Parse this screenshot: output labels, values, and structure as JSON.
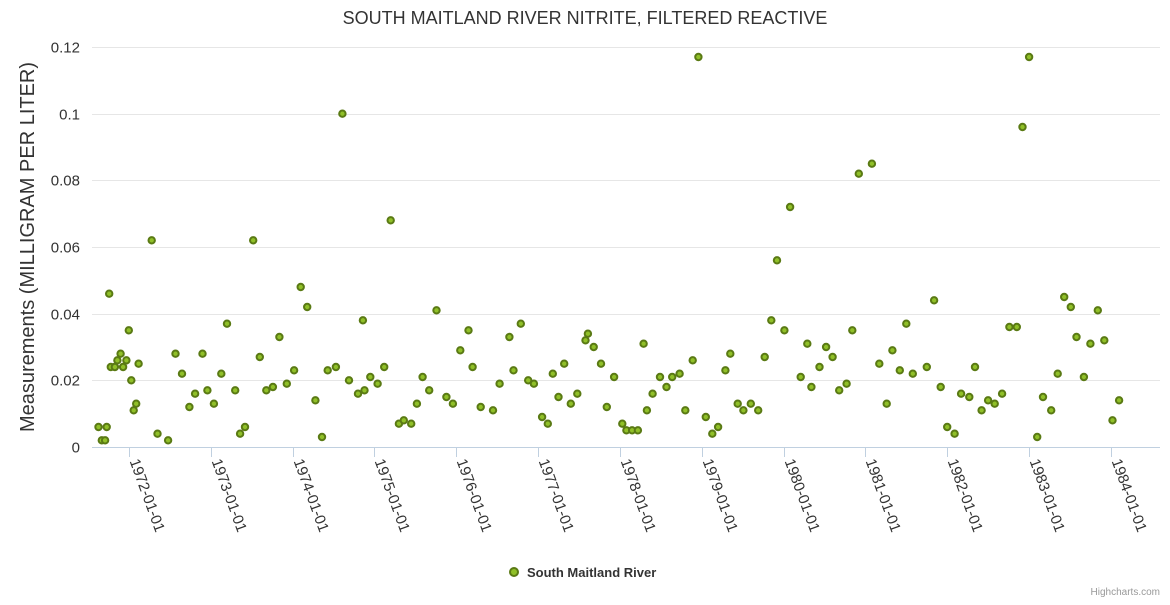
{
  "chart_data": {
    "type": "scatter",
    "title": "SOUTH MAITLAND RIVER NITRITE, FILTERED REACTIVE",
    "ylabel": "Measurements (MILLIGRAM PER LITER)",
    "xlabel": "",
    "ylim": [
      0,
      0.12
    ],
    "y_ticks": [
      0,
      0.02,
      0.04,
      0.06,
      0.08,
      0.1,
      0.12
    ],
    "y_tick_labels": [
      "0",
      "0.02",
      "0.04",
      "0.06",
      "0.08",
      "0.1",
      "0.12"
    ],
    "xlim": [
      1971.55,
      1984.6
    ],
    "x_ticks": [
      1972,
      1973,
      1974,
      1975,
      1976,
      1977,
      1978,
      1979,
      1980,
      1981,
      1982,
      1983,
      1984
    ],
    "x_tick_labels": [
      "1972-01-01",
      "1973-01-01",
      "1974-01-01",
      "1975-01-01",
      "1976-01-01",
      "1977-01-01",
      "1978-01-01",
      "1979-01-01",
      "1980-01-01",
      "1981-01-01",
      "1982-01-01",
      "1983-01-01",
      "1984-01-01"
    ],
    "grid": true,
    "legend_position": "bottom-center",
    "series": [
      {
        "name": "South Maitland River",
        "color": "#90c028",
        "outline_color": "#5a7a14",
        "points": [
          [
            1971.63,
            0.006
          ],
          [
            1971.67,
            0.002
          ],
          [
            1971.71,
            0.002
          ],
          [
            1971.73,
            0.006
          ],
          [
            1971.76,
            0.046
          ],
          [
            1971.78,
            0.024
          ],
          [
            1971.83,
            0.024
          ],
          [
            1971.86,
            0.026
          ],
          [
            1971.9,
            0.028
          ],
          [
            1971.93,
            0.024
          ],
          [
            1971.97,
            0.026
          ],
          [
            1972.0,
            0.035
          ],
          [
            1972.03,
            0.02
          ],
          [
            1972.06,
            0.011
          ],
          [
            1972.09,
            0.013
          ],
          [
            1972.12,
            0.025
          ],
          [
            1972.28,
            0.062
          ],
          [
            1972.35,
            0.004
          ],
          [
            1972.48,
            0.002
          ],
          [
            1972.57,
            0.028
          ],
          [
            1972.65,
            0.022
          ],
          [
            1972.74,
            0.012
          ],
          [
            1972.81,
            0.016
          ],
          [
            1972.9,
            0.028
          ],
          [
            1972.96,
            0.017
          ],
          [
            1973.04,
            0.013
          ],
          [
            1973.13,
            0.022
          ],
          [
            1973.2,
            0.037
          ],
          [
            1973.3,
            0.017
          ],
          [
            1973.36,
            0.004
          ],
          [
            1973.42,
            0.006
          ],
          [
            1973.52,
            0.062
          ],
          [
            1973.6,
            0.027
          ],
          [
            1973.68,
            0.017
          ],
          [
            1973.76,
            0.018
          ],
          [
            1973.84,
            0.033
          ],
          [
            1973.93,
            0.019
          ],
          [
            1974.02,
            0.023
          ],
          [
            1974.1,
            0.048
          ],
          [
            1974.18,
            0.042
          ],
          [
            1974.28,
            0.014
          ],
          [
            1974.36,
            0.003
          ],
          [
            1974.43,
            0.023
          ],
          [
            1974.53,
            0.024
          ],
          [
            1974.61,
            0.1
          ],
          [
            1974.69,
            0.02
          ],
          [
            1974.8,
            0.016
          ],
          [
            1974.86,
            0.038
          ],
          [
            1974.88,
            0.017
          ],
          [
            1974.95,
            0.021
          ],
          [
            1975.04,
            0.019
          ],
          [
            1975.12,
            0.024
          ],
          [
            1975.2,
            0.068
          ],
          [
            1975.3,
            0.007
          ],
          [
            1975.36,
            0.008
          ],
          [
            1975.45,
            0.007
          ],
          [
            1975.52,
            0.013
          ],
          [
            1975.59,
            0.021
          ],
          [
            1975.67,
            0.017
          ],
          [
            1975.76,
            0.041
          ],
          [
            1975.88,
            0.015
          ],
          [
            1975.96,
            0.013
          ],
          [
            1976.05,
            0.029
          ],
          [
            1976.15,
            0.035
          ],
          [
            1976.2,
            0.024
          ],
          [
            1976.3,
            0.012
          ],
          [
            1976.45,
            0.011
          ],
          [
            1976.53,
            0.019
          ],
          [
            1976.65,
            0.033
          ],
          [
            1976.7,
            0.023
          ],
          [
            1976.79,
            0.037
          ],
          [
            1976.88,
            0.02
          ],
          [
            1976.95,
            0.019
          ],
          [
            1977.05,
            0.009
          ],
          [
            1977.12,
            0.007
          ],
          [
            1977.18,
            0.022
          ],
          [
            1977.25,
            0.015
          ],
          [
            1977.32,
            0.025
          ],
          [
            1977.4,
            0.013
          ],
          [
            1977.48,
            0.016
          ],
          [
            1977.58,
            0.032
          ],
          [
            1977.61,
            0.034
          ],
          [
            1977.68,
            0.03
          ],
          [
            1977.77,
            0.025
          ],
          [
            1977.84,
            0.012
          ],
          [
            1977.93,
            0.021
          ],
          [
            1978.03,
            0.007
          ],
          [
            1978.08,
            0.005
          ],
          [
            1978.15,
            0.005
          ],
          [
            1978.22,
            0.005
          ],
          [
            1978.29,
            0.031
          ],
          [
            1978.33,
            0.011
          ],
          [
            1978.4,
            0.016
          ],
          [
            1978.49,
            0.021
          ],
          [
            1978.57,
            0.018
          ],
          [
            1978.64,
            0.021
          ],
          [
            1978.73,
            0.022
          ],
          [
            1978.8,
            0.011
          ],
          [
            1978.89,
            0.026
          ],
          [
            1978.96,
            0.117
          ],
          [
            1979.05,
            0.009
          ],
          [
            1979.13,
            0.004
          ],
          [
            1979.2,
            0.006
          ],
          [
            1979.29,
            0.023
          ],
          [
            1979.35,
            0.028
          ],
          [
            1979.44,
            0.013
          ],
          [
            1979.51,
            0.011
          ],
          [
            1979.6,
            0.013
          ],
          [
            1979.69,
            0.011
          ],
          [
            1979.77,
            0.027
          ],
          [
            1979.85,
            0.038
          ],
          [
            1979.92,
            0.056
          ],
          [
            1980.01,
            0.035
          ],
          [
            1980.08,
            0.072
          ],
          [
            1980.21,
            0.021
          ],
          [
            1980.29,
            0.031
          ],
          [
            1980.34,
            0.018
          ],
          [
            1980.44,
            0.024
          ],
          [
            1980.52,
            0.03
          ],
          [
            1980.6,
            0.027
          ],
          [
            1980.68,
            0.017
          ],
          [
            1980.77,
            0.019
          ],
          [
            1980.84,
            0.035
          ],
          [
            1980.92,
            0.082
          ],
          [
            1981.08,
            0.085
          ],
          [
            1981.17,
            0.025
          ],
          [
            1981.26,
            0.013
          ],
          [
            1981.33,
            0.029
          ],
          [
            1981.42,
            0.023
          ],
          [
            1981.5,
            0.037
          ],
          [
            1981.58,
            0.022
          ],
          [
            1981.75,
            0.024
          ],
          [
            1981.84,
            0.044
          ],
          [
            1981.92,
            0.018
          ],
          [
            1982.0,
            0.006
          ],
          [
            1982.09,
            0.004
          ],
          [
            1982.17,
            0.016
          ],
          [
            1982.27,
            0.015
          ],
          [
            1982.34,
            0.024
          ],
          [
            1982.42,
            0.011
          ],
          [
            1982.5,
            0.014
          ],
          [
            1982.58,
            0.013
          ],
          [
            1982.67,
            0.016
          ],
          [
            1982.76,
            0.036
          ],
          [
            1982.85,
            0.036
          ],
          [
            1982.92,
            0.096
          ],
          [
            1983.0,
            0.117
          ],
          [
            1983.1,
            0.003
          ],
          [
            1983.17,
            0.015
          ],
          [
            1983.27,
            0.011
          ],
          [
            1983.35,
            0.022
          ],
          [
            1983.43,
            0.045
          ],
          [
            1983.51,
            0.042
          ],
          [
            1983.58,
            0.033
          ],
          [
            1983.67,
            0.021
          ],
          [
            1983.75,
            0.031
          ],
          [
            1983.84,
            0.041
          ],
          [
            1983.92,
            0.032
          ],
          [
            1984.02,
            0.008
          ],
          [
            1984.1,
            0.014
          ]
        ]
      }
    ]
  },
  "credits": "Highcharts.com"
}
